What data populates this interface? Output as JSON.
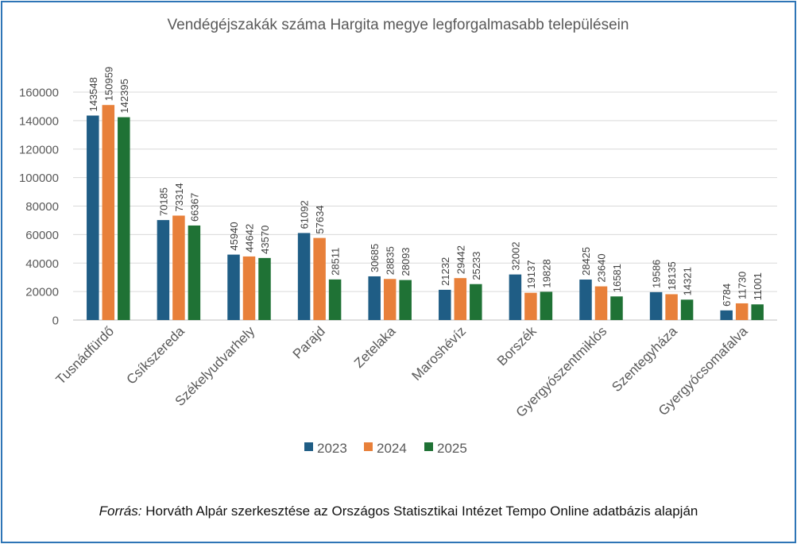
{
  "chart_data": {
    "type": "bar",
    "title": "Vendégéjszakák száma Hargita megye legforgalmasabb településein",
    "xlabel": "",
    "ylabel": "",
    "ylim": [
      0,
      160000
    ],
    "yticks": [
      0,
      20000,
      40000,
      60000,
      80000,
      100000,
      120000,
      140000,
      160000
    ],
    "ytick_labels": [
      "0",
      "20000",
      "40000",
      "60000",
      "80000",
      "100000",
      "120000",
      "140000",
      "160000"
    ],
    "grid": true,
    "legend_position": "bottom",
    "data_labels": true,
    "categories": [
      "Tusnádfürdő",
      "Csíkszereda",
      "Székelyudvarhely",
      "Parajd",
      "Zetelaka",
      "Maroshévíz",
      "Borszék",
      "Gyergyószentmiklós",
      "Szentegyháza",
      "Gyergyócsomafalva"
    ],
    "series": [
      {
        "name": "2023",
        "color": "#1f5d85",
        "values": [
          143548,
          70185,
          45940,
          61092,
          30685,
          21232,
          32002,
          28425,
          19586,
          6784
        ]
      },
      {
        "name": "2024",
        "color": "#e8803a",
        "values": [
          150959,
          73314,
          44642,
          57634,
          28835,
          29442,
          19137,
          23640,
          18135,
          11730
        ]
      },
      {
        "name": "2025",
        "color": "#1f7235",
        "values": [
          142395,
          66367,
          43570,
          28511,
          28093,
          25233,
          19828,
          16581,
          14321,
          11001
        ]
      }
    ]
  },
  "source": {
    "prefix": "Forrás:",
    "text": " Horváth Alpár szerkesztése  az Országos Statisztikai Intézet Tempo Online adatbázis alapján"
  },
  "colors": {
    "border": "#2e75b6",
    "grid": "#d9d9d9",
    "text": "#595959"
  }
}
